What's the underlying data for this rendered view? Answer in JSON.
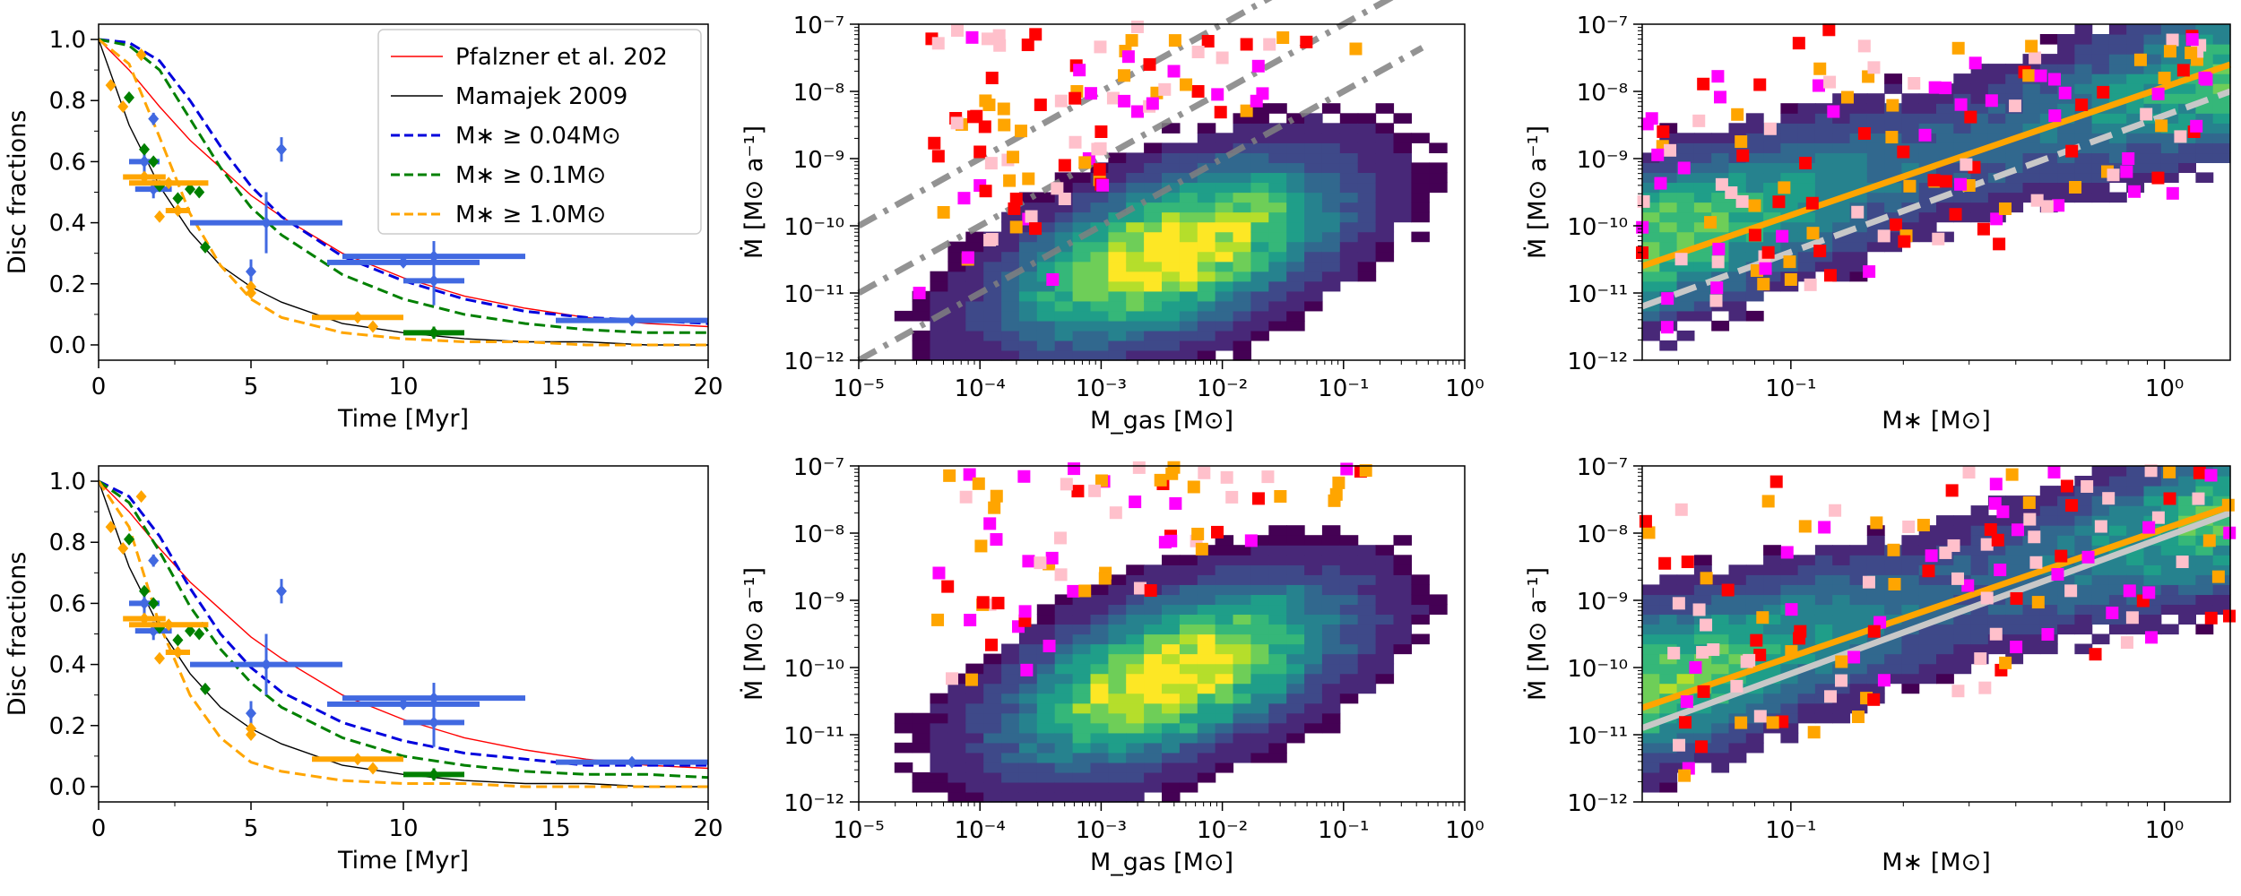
{
  "chart_data": [
    {
      "type": "line",
      "panel": "top-left",
      "xlabel": "Time [Myr]",
      "ylabel": "Disc fractions",
      "xlim": [
        0,
        20
      ],
      "ylim": [
        -0.05,
        1.05
      ],
      "xticks": [
        "0",
        "5",
        "10",
        "15",
        "20"
      ],
      "yticks": [
        "0.0",
        "0.2",
        "0.4",
        "0.6",
        "0.8",
        "1.0"
      ],
      "legend_position": "top-right",
      "legend": [
        {
          "label": "Pfalzner et al. 202",
          "color": "#ff0000",
          "style": "solid"
        },
        {
          "label": "Mamajek 2009",
          "color": "#000000",
          "style": "solid"
        },
        {
          "label": "M∗ ≥ 0.04M⊙",
          "color": "#0000dd",
          "style": "dashed"
        },
        {
          "label": "M∗ ≥ 0.1M⊙",
          "color": "#008000",
          "style": "dashed"
        },
        {
          "label": "M∗ ≥ 1.0M⊙",
          "color": "#ffa500",
          "style": "dashed"
        }
      ],
      "series": [
        {
          "name": "Pfalzner et al. 202",
          "x": [
            0,
            1,
            2,
            3,
            4,
            5,
            6,
            8,
            10,
            12,
            14,
            16,
            18,
            20
          ],
          "y": [
            1.0,
            0.9,
            0.78,
            0.67,
            0.58,
            0.49,
            0.42,
            0.3,
            0.22,
            0.16,
            0.12,
            0.09,
            0.07,
            0.06
          ]
        },
        {
          "name": "Mamajek 2009",
          "x": [
            0,
            1,
            2,
            3,
            4,
            5,
            6,
            8,
            10,
            12,
            14,
            16,
            18,
            20
          ],
          "y": [
            1.0,
            0.72,
            0.52,
            0.37,
            0.26,
            0.19,
            0.14,
            0.07,
            0.04,
            0.02,
            0.01,
            0.01,
            0.0,
            0.0
          ]
        },
        {
          "name": "M∗ ≥ 0.04M⊙",
          "x": [
            0,
            1,
            2,
            3,
            4,
            5,
            6,
            8,
            10,
            12,
            14,
            16,
            18,
            20
          ],
          "y": [
            1.0,
            0.99,
            0.93,
            0.8,
            0.65,
            0.52,
            0.42,
            0.29,
            0.21,
            0.15,
            0.11,
            0.09,
            0.08,
            0.07
          ]
        },
        {
          "name": "M∗ ≥ 0.1M⊙",
          "x": [
            0,
            1,
            2,
            3,
            4,
            5,
            6,
            8,
            10,
            12,
            14,
            16,
            18,
            20
          ],
          "y": [
            1.0,
            0.98,
            0.9,
            0.74,
            0.58,
            0.45,
            0.36,
            0.23,
            0.15,
            0.1,
            0.07,
            0.05,
            0.04,
            0.04
          ]
        },
        {
          "name": "M∗ ≥ 1.0M⊙",
          "x": [
            0,
            1,
            2,
            3,
            4,
            5,
            6,
            8,
            10,
            12,
            14,
            16,
            18,
            20
          ],
          "y": [
            1.0,
            0.92,
            0.68,
            0.43,
            0.26,
            0.15,
            0.09,
            0.04,
            0.02,
            0.01,
            0.01,
            0.0,
            0.0,
            0.0
          ]
        }
      ],
      "observations": [
        {
          "group": "blue",
          "x": 1.5,
          "y": 0.6,
          "xerr": 0.5,
          "yerr": 0.04
        },
        {
          "group": "blue",
          "x": 1.8,
          "y": 0.51,
          "xerr": 0.6,
          "yerr": 0.03
        },
        {
          "group": "blue",
          "x": 1.8,
          "y": 0.74,
          "xerr": 0.0,
          "yerr": 0.02
        },
        {
          "group": "blue",
          "x": 5.5,
          "y": 0.4,
          "xerr": 2.5,
          "yerr": 0.1
        },
        {
          "group": "blue",
          "x": 5.0,
          "y": 0.24,
          "xerr": 0.0,
          "yerr": 0.04
        },
        {
          "group": "blue",
          "x": 6.0,
          "y": 0.64,
          "xerr": 0.0,
          "yerr": 0.04
        },
        {
          "group": "blue",
          "x": 11.0,
          "y": 0.29,
          "xerr": 3.0,
          "yerr": 0.05
        },
        {
          "group": "blue",
          "x": 10.0,
          "y": 0.27,
          "xerr": 2.5,
          "yerr": 0.0
        },
        {
          "group": "blue",
          "x": 11.0,
          "y": 0.21,
          "xerr": 1.0,
          "yerr": 0.08
        },
        {
          "group": "blue",
          "x": 17.5,
          "y": 0.08,
          "xerr": 2.5,
          "yerr": 0.0
        },
        {
          "group": "green",
          "x": 1.0,
          "y": 0.81,
          "xerr": 0.0,
          "yerr": 0.0
        },
        {
          "group": "green",
          "x": 1.5,
          "y": 0.64,
          "xerr": 0.0,
          "yerr": 0.0
        },
        {
          "group": "green",
          "x": 1.8,
          "y": 0.6,
          "xerr": 0.0,
          "yerr": 0.0
        },
        {
          "group": "green",
          "x": 2.0,
          "y": 0.52,
          "xerr": 0.0,
          "yerr": 0.0
        },
        {
          "group": "green",
          "x": 2.6,
          "y": 0.48,
          "xerr": 0.0,
          "yerr": 0.0
        },
        {
          "group": "green",
          "x": 3.0,
          "y": 0.51,
          "xerr": 0.0,
          "yerr": 0.0
        },
        {
          "group": "green",
          "x": 3.3,
          "y": 0.5,
          "xerr": 0.0,
          "yerr": 0.0
        },
        {
          "group": "green",
          "x": 3.5,
          "y": 0.32,
          "xerr": 0.0,
          "yerr": 0.0
        },
        {
          "group": "green",
          "x": 11.0,
          "y": 0.04,
          "xerr": 1.0,
          "yerr": 0.02
        },
        {
          "group": "orange",
          "x": 0.4,
          "y": 0.85,
          "xerr": 0.0,
          "yerr": 0.0
        },
        {
          "group": "orange",
          "x": 0.8,
          "y": 0.78,
          "xerr": 0.0,
          "yerr": 0.0
        },
        {
          "group": "orange",
          "x": 1.4,
          "y": 0.95,
          "xerr": 0.0,
          "yerr": 0.0
        },
        {
          "group": "orange",
          "x": 1.5,
          "y": 0.55,
          "xerr": 0.7,
          "yerr": 0.0
        },
        {
          "group": "orange",
          "x": 2.0,
          "y": 0.42,
          "xerr": 0.0,
          "yerr": 0.0
        },
        {
          "group": "orange",
          "x": 2.3,
          "y": 0.53,
          "xerr": 1.3,
          "yerr": 0.0
        },
        {
          "group": "orange",
          "x": 2.6,
          "y": 0.44,
          "xerr": 0.4,
          "yerr": 0.0
        },
        {
          "group": "orange",
          "x": 5.0,
          "y": 0.19,
          "xerr": 0.0,
          "yerr": 0.0
        },
        {
          "group": "orange",
          "x": 5.0,
          "y": 0.17,
          "xerr": 0.0,
          "yerr": 0.0
        },
        {
          "group": "orange",
          "x": 8.5,
          "y": 0.09,
          "xerr": 1.5,
          "yerr": 0.0
        },
        {
          "group": "orange",
          "x": 9.0,
          "y": 0.06,
          "xerr": 0.0,
          "yerr": 0.0
        }
      ]
    },
    {
      "type": "heatmap",
      "panel": "top-middle",
      "xlabel": "M_gas [M⊙]",
      "ylabel": "Ṁ [M⊙ a⁻¹]",
      "xscale": "log",
      "yscale": "log",
      "xlim": [
        1e-05,
        1
      ],
      "ylim": [
        1e-12,
        1e-07
      ],
      "xticks": [
        "10⁻⁵",
        "10⁻⁴",
        "10⁻³",
        "10⁻²",
        "10⁻¹",
        "10⁰"
      ],
      "yticks": [
        "10⁻¹²",
        "10⁻¹¹",
        "10⁻¹⁰",
        "10⁻⁹",
        "10⁻⁸",
        "10⁻⁷"
      ],
      "density_peak": {
        "log_mgas": -2.4,
        "log_mdot": -10.4
      },
      "reference_lines": [
        {
          "style": "dash-dot",
          "color": "#808080",
          "slope": 1,
          "log_mdot_at_log_mgas_minus5": -10.0
        },
        {
          "style": "dash-dot",
          "color": "#808080",
          "slope": 1,
          "log_mdot_at_log_mgas_minus5": -11.0
        },
        {
          "style": "dash-dot",
          "color": "#808080",
          "slope": 1,
          "log_mdot_at_log_mgas_minus5": -12.0
        }
      ],
      "scatter": [
        {
          "log_mgas": -4.2,
          "log_mdot": -8.4,
          "color": "#ff0000"
        },
        {
          "log_mgas": -4.0,
          "log_mdot": -8.9,
          "color": "#ff0000"
        },
        {
          "log_mgas": -3.9,
          "log_mdot": -7.8,
          "color": "#ff0000"
        },
        {
          "log_mgas": -3.7,
          "log_mdot": -9.6,
          "color": "#ff0000"
        },
        {
          "log_mgas": -3.5,
          "log_mdot": -8.2,
          "color": "#ff0000"
        },
        {
          "log_mgas": -3.3,
          "log_mdot": -9.1,
          "color": "#ff0000"
        },
        {
          "log_mgas": -3.0,
          "log_mdot": -8.6,
          "color": "#ff0000"
        },
        {
          "log_mgas": -2.6,
          "log_mdot": -7.6,
          "color": "#ff0000"
        },
        {
          "log_mgas": -2.2,
          "log_mdot": -8.0,
          "color": "#ff0000"
        },
        {
          "log_mgas": -1.8,
          "log_mdot": -7.3,
          "color": "#ff0000"
        },
        {
          "log_mgas": -4.3,
          "log_mdot": -9.8,
          "color": "#ffa500"
        },
        {
          "log_mgas": -4.1,
          "log_mdot": -10.5,
          "color": "#ffa500"
        },
        {
          "log_mgas": -3.8,
          "log_mdot": -8.5,
          "color": "#ffa500"
        },
        {
          "log_mgas": -3.6,
          "log_mdot": -9.3,
          "color": "#ffa500"
        },
        {
          "log_mgas": -3.2,
          "log_mdot": -8.0,
          "color": "#ffa500"
        },
        {
          "log_mgas": -2.8,
          "log_mdot": -7.4,
          "color": "#ffa500"
        },
        {
          "log_mgas": -2.3,
          "log_mdot": -7.9,
          "color": "#ffa500"
        },
        {
          "log_mgas": -1.5,
          "log_mdot": -7.2,
          "color": "#ffa500"
        },
        {
          "log_mgas": -4.5,
          "log_mdot": -11.0,
          "color": "#ff00ff"
        },
        {
          "log_mgas": -4.0,
          "log_mdot": -9.4,
          "color": "#ff00ff"
        },
        {
          "log_mgas": -3.6,
          "log_mdot": -9.9,
          "color": "#ff00ff"
        },
        {
          "log_mgas": -3.4,
          "log_mdot": -10.8,
          "color": "#ff00ff"
        },
        {
          "log_mgas": -3.1,
          "log_mdot": -9.0,
          "color": "#ff00ff"
        },
        {
          "log_mgas": -2.7,
          "log_mdot": -8.3,
          "color": "#ff00ff"
        },
        {
          "log_mgas": -2.4,
          "log_mdot": -7.7,
          "color": "#ff00ff"
        },
        {
          "log_mgas": -3.9,
          "log_mdot": -10.2,
          "color": "#ffc0cb"
        },
        {
          "log_mgas": -3.3,
          "log_mdot": -9.6,
          "color": "#ffc0cb"
        },
        {
          "log_mgas": -2.9,
          "log_mdot": -8.1,
          "color": "#ffc0cb"
        },
        {
          "log_mgas": -2.0,
          "log_mdot": -7.5,
          "color": "#ffc0cb"
        }
      ]
    },
    {
      "type": "heatmap",
      "panel": "top-right",
      "xlabel": "M∗ [M⊙]",
      "ylabel": "Ṁ [M⊙ a⁻¹]",
      "xscale": "log",
      "yscale": "log",
      "xlim": [
        0.04,
        1.5
      ],
      "ylim": [
        1e-12,
        1e-07
      ],
      "xticks": [
        "10⁻¹",
        "10⁰"
      ],
      "yticks": [
        "10⁻¹²",
        "10⁻¹¹",
        "10⁻¹⁰",
        "10⁻⁹",
        "10⁻⁸",
        "10⁻⁷"
      ],
      "fit_lines": [
        {
          "color": "#ffa500",
          "style": "solid",
          "log_mdot_at_0.04": -10.6,
          "log_mdot_at_1.5": -7.6
        },
        {
          "color": "#c8c8c8",
          "style": "dashed",
          "log_mdot_at_0.04": -11.2,
          "log_mdot_at_1.5": -8.0
        }
      ],
      "scatter": [
        {
          "mstar": 0.04,
          "log_mdot": -10.4,
          "color": "#ff0000"
        },
        {
          "mstar": 0.08,
          "log_mdot": -9.7,
          "color": "#ffa500"
        },
        {
          "mstar": 0.1,
          "log_mdot": -10.8,
          "color": "#ffa500"
        },
        {
          "mstar": 0.13,
          "log_mdot": -8.3,
          "color": "#ff00ff"
        },
        {
          "mstar": 0.2,
          "log_mdot": -8.9,
          "color": "#ff0000"
        },
        {
          "mstar": 0.3,
          "log_mdot": -9.4,
          "color": "#ffa500"
        },
        {
          "mstar": 0.45,
          "log_mdot": -7.5,
          "color": "#ffc0cb"
        },
        {
          "mstar": 0.6,
          "log_mdot": -8.2,
          "color": "#ff0000"
        },
        {
          "mstar": 0.8,
          "log_mdot": -9.0,
          "color": "#ff00ff"
        },
        {
          "mstar": 1.0,
          "log_mdot": -7.8,
          "color": "#ffa500"
        },
        {
          "mstar": 1.2,
          "log_mdot": -8.6,
          "color": "#ff0000"
        }
      ]
    },
    {
      "type": "line",
      "panel": "bottom-left",
      "xlabel": "Time [Myr]",
      "ylabel": "Disc fractions",
      "xlim": [
        0,
        20
      ],
      "ylim": [
        -0.05,
        1.05
      ],
      "xticks": [
        "0",
        "5",
        "10",
        "15",
        "20"
      ],
      "yticks": [
        "0.0",
        "0.2",
        "0.4",
        "0.6",
        "0.8",
        "1.0"
      ],
      "series": [
        {
          "name": "Pfalzner et al. 202",
          "x": [
            0,
            1,
            2,
            3,
            4,
            5,
            6,
            8,
            10,
            12,
            14,
            16,
            18,
            20
          ],
          "y": [
            1.0,
            0.9,
            0.78,
            0.67,
            0.58,
            0.49,
            0.42,
            0.3,
            0.22,
            0.16,
            0.12,
            0.09,
            0.07,
            0.06
          ]
        },
        {
          "name": "Mamajek 2009",
          "x": [
            0,
            1,
            2,
            3,
            4,
            5,
            6,
            8,
            10,
            12,
            14,
            16,
            18,
            20
          ],
          "y": [
            1.0,
            0.72,
            0.52,
            0.37,
            0.26,
            0.19,
            0.14,
            0.07,
            0.04,
            0.02,
            0.01,
            0.01,
            0.0,
            0.0
          ]
        },
        {
          "name": "M∗ ≥ 0.04M⊙",
          "x": [
            0,
            1,
            2,
            3,
            4,
            5,
            6,
            8,
            10,
            12,
            14,
            16,
            18,
            20
          ],
          "y": [
            1.0,
            0.95,
            0.82,
            0.65,
            0.5,
            0.39,
            0.31,
            0.21,
            0.15,
            0.11,
            0.09,
            0.07,
            0.07,
            0.07
          ]
        },
        {
          "name": "M∗ ≥ 0.1M⊙",
          "x": [
            0,
            1,
            2,
            3,
            4,
            5,
            6,
            8,
            10,
            12,
            14,
            16,
            18,
            20
          ],
          "y": [
            1.0,
            0.93,
            0.77,
            0.59,
            0.45,
            0.34,
            0.26,
            0.16,
            0.1,
            0.07,
            0.05,
            0.04,
            0.04,
            0.03
          ]
        },
        {
          "name": "M∗ ≥ 1.0M⊙",
          "x": [
            0,
            1,
            2,
            3,
            4,
            5,
            6,
            8,
            10,
            12,
            14,
            16,
            18,
            20
          ],
          "y": [
            1.0,
            0.85,
            0.53,
            0.3,
            0.16,
            0.08,
            0.05,
            0.02,
            0.01,
            0.01,
            0.0,
            0.0,
            0.0,
            0.0
          ]
        }
      ]
    },
    {
      "type": "heatmap",
      "panel": "bottom-middle",
      "xlabel": "M_gas [M⊙]",
      "ylabel": "Ṁ [M⊙ a⁻¹]",
      "xscale": "log",
      "yscale": "log",
      "xlim": [
        1e-05,
        1
      ],
      "ylim": [
        1e-12,
        1e-07
      ],
      "xticks": [
        "10⁻⁵",
        "10⁻⁴",
        "10⁻³",
        "10⁻²",
        "10⁻¹",
        "10⁰"
      ],
      "yticks": [
        "10⁻¹²",
        "10⁻¹¹",
        "10⁻¹⁰",
        "10⁻⁹",
        "10⁻⁸",
        "10⁻⁷"
      ],
      "density_peak": {
        "log_mgas": -2.4,
        "log_mdot": -10.1
      }
    },
    {
      "type": "heatmap",
      "panel": "bottom-right",
      "xlabel": "M∗ [M⊙]",
      "ylabel": "Ṁ [M⊙ a⁻¹]",
      "xscale": "log",
      "yscale": "log",
      "xlim": [
        0.04,
        1.5
      ],
      "ylim": [
        1e-12,
        1e-07
      ],
      "xticks": [
        "10⁻¹",
        "10⁰"
      ],
      "yticks": [
        "10⁻¹²",
        "10⁻¹¹",
        "10⁻¹⁰",
        "10⁻⁹",
        "10⁻⁸",
        "10⁻⁷"
      ],
      "fit_lines": [
        {
          "color": "#ffa500",
          "style": "solid",
          "log_mdot_at_0.04": -10.6,
          "log_mdot_at_1.5": -7.6
        },
        {
          "color": "#c8c8c8",
          "style": "solid",
          "log_mdot_at_0.04": -10.9,
          "log_mdot_at_1.5": -7.7
        }
      ]
    }
  ]
}
